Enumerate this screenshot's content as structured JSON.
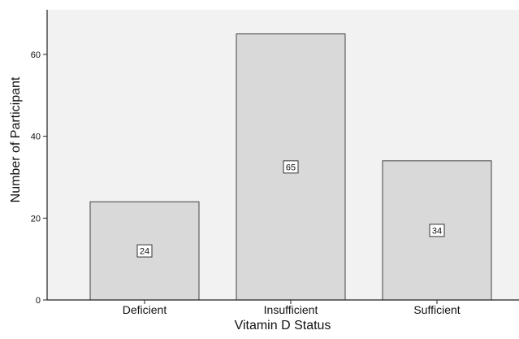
{
  "chart_data": {
    "type": "bar",
    "title": "",
    "xlabel": "Vitamin D Status",
    "ylabel": "Number of Participant",
    "categories": [
      "Deficient",
      "Insufficient",
      "Sufficient"
    ],
    "values": [
      24,
      65,
      34
    ],
    "data_labels": [
      "24",
      "65",
      "34"
    ],
    "y_ticks": [
      0,
      20,
      40,
      60
    ],
    "y_tick_labels": [
      "0",
      "20",
      "40",
      "60"
    ],
    "ylim": [
      0,
      70
    ],
    "grid": false,
    "legend": "none",
    "colors": {
      "plot_background": "#f2f2f2",
      "bar_fill": "#d9d9d9",
      "bar_stroke": "#444444",
      "axis": "#222222",
      "text": "#111111"
    }
  }
}
